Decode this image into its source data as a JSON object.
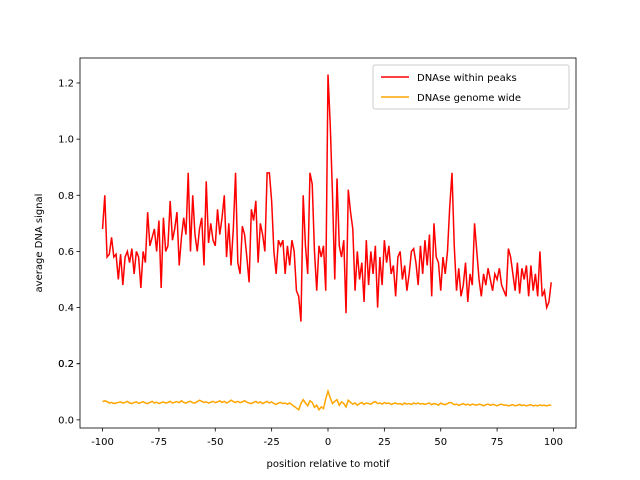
{
  "chart_data": {
    "type": "line",
    "xlabel": "position relative to motif",
    "ylabel": "average DNA signal",
    "x": [
      -100,
      -99,
      -98,
      -97,
      -96,
      -95,
      -94,
      -93,
      -92,
      -91,
      -90,
      -89,
      -88,
      -87,
      -86,
      -85,
      -84,
      -83,
      -82,
      -81,
      -80,
      -79,
      -78,
      -77,
      -76,
      -75,
      -74,
      -73,
      -72,
      -71,
      -70,
      -69,
      -68,
      -67,
      -66,
      -65,
      -64,
      -63,
      -62,
      -61,
      -60,
      -59,
      -58,
      -57,
      -56,
      -55,
      -54,
      -53,
      -52,
      -51,
      -50,
      -49,
      -48,
      -47,
      -46,
      -45,
      -44,
      -43,
      -42,
      -41,
      -40,
      -39,
      -38,
      -37,
      -36,
      -35,
      -34,
      -33,
      -32,
      -31,
      -30,
      -29,
      -28,
      -27,
      -26,
      -25,
      -24,
      -23,
      -22,
      -21,
      -20,
      -19,
      -18,
      -17,
      -16,
      -15,
      -14,
      -13,
      -12,
      -11,
      -10,
      -9,
      -8,
      -7,
      -6,
      -5,
      -4,
      -3,
      -2,
      -1,
      0,
      1,
      2,
      3,
      4,
      5,
      6,
      7,
      8,
      9,
      10,
      11,
      12,
      13,
      14,
      15,
      16,
      17,
      18,
      19,
      20,
      21,
      22,
      23,
      24,
      25,
      26,
      27,
      28,
      29,
      30,
      31,
      32,
      33,
      34,
      35,
      36,
      37,
      38,
      39,
      40,
      41,
      42,
      43,
      44,
      45,
      46,
      47,
      48,
      49,
      50,
      51,
      52,
      53,
      54,
      55,
      56,
      57,
      58,
      59,
      60,
      61,
      62,
      63,
      64,
      65,
      66,
      67,
      68,
      69,
      70,
      71,
      72,
      73,
      74,
      75,
      76,
      77,
      78,
      79,
      80,
      81,
      82,
      83,
      84,
      85,
      86,
      87,
      88,
      89,
      90,
      91,
      92,
      93,
      94,
      95,
      96,
      97,
      98,
      99
    ],
    "series": [
      {
        "name": "DNAse within peaks",
        "color": "#ff0000",
        "values": [
          0.68,
          0.8,
          0.58,
          0.59,
          0.65,
          0.58,
          0.59,
          0.5,
          0.59,
          0.48,
          0.58,
          0.6,
          0.56,
          0.61,
          0.52,
          0.6,
          0.58,
          0.47,
          0.6,
          0.56,
          0.74,
          0.62,
          0.65,
          0.68,
          0.6,
          0.71,
          0.47,
          0.72,
          0.6,
          0.62,
          0.78,
          0.64,
          0.68,
          0.74,
          0.55,
          0.65,
          0.72,
          0.66,
          0.88,
          0.6,
          0.8,
          0.66,
          0.6,
          0.68,
          0.72,
          0.55,
          0.85,
          0.63,
          0.7,
          0.64,
          0.62,
          0.75,
          0.66,
          0.72,
          0.8,
          0.58,
          0.7,
          0.55,
          0.68,
          0.88,
          0.56,
          0.52,
          0.69,
          0.66,
          0.58,
          0.49,
          0.75,
          0.71,
          0.78,
          0.56,
          0.7,
          0.66,
          0.6,
          0.88,
          0.88,
          0.78,
          0.6,
          0.52,
          0.64,
          0.62,
          0.64,
          0.52,
          0.62,
          0.55,
          0.64,
          0.6,
          0.46,
          0.44,
          0.35,
          0.8,
          0.62,
          0.52,
          0.88,
          0.84,
          0.6,
          0.46,
          0.62,
          0.58,
          0.62,
          0.46,
          1.23,
          1.05,
          0.8,
          0.5,
          0.86,
          0.62,
          0.58,
          0.64,
          0.38,
          0.82,
          0.74,
          0.68,
          0.46,
          0.6,
          0.5,
          0.56,
          0.42,
          0.64,
          0.48,
          0.6,
          0.52,
          0.62,
          0.4,
          0.58,
          0.48,
          0.64,
          0.56,
          0.62,
          0.52,
          0.55,
          0.44,
          0.58,
          0.6,
          0.5,
          0.55,
          0.46,
          0.52,
          0.6,
          0.61,
          0.56,
          0.48,
          0.62,
          0.52,
          0.64,
          0.55,
          0.66,
          0.44,
          0.7,
          0.58,
          0.56,
          0.46,
          0.58,
          0.52,
          0.6,
          0.76,
          0.88,
          0.62,
          0.46,
          0.54,
          0.44,
          0.48,
          0.56,
          0.42,
          0.52,
          0.48,
          0.7,
          0.6,
          0.5,
          0.44,
          0.52,
          0.48,
          0.54,
          0.5,
          0.46,
          0.52,
          0.5,
          0.54,
          0.48,
          0.46,
          0.44,
          0.61,
          0.58,
          0.52,
          0.46,
          0.56,
          0.45,
          0.54,
          0.5,
          0.55,
          0.44,
          0.55,
          0.46,
          0.52,
          0.44,
          0.6,
          0.44,
          0.46,
          0.4,
          0.42,
          0.49
        ]
      },
      {
        "name": "DNAse genome wide",
        "color": "#ffa500",
        "values": [
          0.065,
          0.068,
          0.065,
          0.06,
          0.062,
          0.058,
          0.06,
          0.062,
          0.064,
          0.06,
          0.062,
          0.066,
          0.06,
          0.058,
          0.062,
          0.064,
          0.059,
          0.061,
          0.065,
          0.06,
          0.058,
          0.062,
          0.066,
          0.06,
          0.063,
          0.058,
          0.061,
          0.064,
          0.06,
          0.062,
          0.066,
          0.06,
          0.063,
          0.065,
          0.061,
          0.068,
          0.062,
          0.06,
          0.064,
          0.066,
          0.061,
          0.06,
          0.065,
          0.07,
          0.066,
          0.062,
          0.064,
          0.06,
          0.063,
          0.066,
          0.061,
          0.064,
          0.068,
          0.062,
          0.066,
          0.06,
          0.064,
          0.07,
          0.065,
          0.062,
          0.066,
          0.061,
          0.064,
          0.068,
          0.063,
          0.06,
          0.058,
          0.062,
          0.066,
          0.06,
          0.064,
          0.058,
          0.062,
          0.066,
          0.06,
          0.064,
          0.058,
          0.055,
          0.06,
          0.062,
          0.058,
          0.06,
          0.056,
          0.06,
          0.054,
          0.048,
          0.042,
          0.036,
          0.058,
          0.072,
          0.06,
          0.05,
          0.068,
          0.062,
          0.045,
          0.052,
          0.036,
          0.046,
          0.04,
          0.075,
          0.102,
          0.078,
          0.058,
          0.066,
          0.072,
          0.052,
          0.064,
          0.058,
          0.046,
          0.07,
          0.062,
          0.056,
          0.06,
          0.052,
          0.058,
          0.062,
          0.055,
          0.06,
          0.058,
          0.056,
          0.062,
          0.065,
          0.058,
          0.06,
          0.056,
          0.062,
          0.058,
          0.06,
          0.055,
          0.058,
          0.06,
          0.056,
          0.058,
          0.054,
          0.06,
          0.056,
          0.058,
          0.055,
          0.06,
          0.057,
          0.06,
          0.056,
          0.058,
          0.055,
          0.058,
          0.06,
          0.054,
          0.058,
          0.056,
          0.052,
          0.06,
          0.056,
          0.054,
          0.058,
          0.062,
          0.06,
          0.054,
          0.056,
          0.052,
          0.055,
          0.058,
          0.053,
          0.056,
          0.052,
          0.056,
          0.054,
          0.052,
          0.056,
          0.054,
          0.05,
          0.054,
          0.056,
          0.052,
          0.055,
          0.053,
          0.05,
          0.054,
          0.056,
          0.052,
          0.053,
          0.05,
          0.052,
          0.054,
          0.05,
          0.052,
          0.055,
          0.051,
          0.053,
          0.05,
          0.052,
          0.054,
          0.05,
          0.052,
          0.05,
          0.053,
          0.051,
          0.052,
          0.05,
          0.052,
          0.053
        ]
      }
    ],
    "xlim": [
      -110,
      110
    ],
    "ylim": [
      -0.029,
      1.289
    ],
    "xticks": [
      -100,
      -75,
      -50,
      -25,
      0,
      25,
      50,
      75,
      100
    ],
    "yticks": [
      {
        "value": 0,
        "label": "0.0"
      },
      0.2,
      0.4,
      0.6,
      0.8,
      {
        "value": 1,
        "label": "1.0"
      },
      0.2,
      1.2
    ],
    "legend": "upper right"
  }
}
